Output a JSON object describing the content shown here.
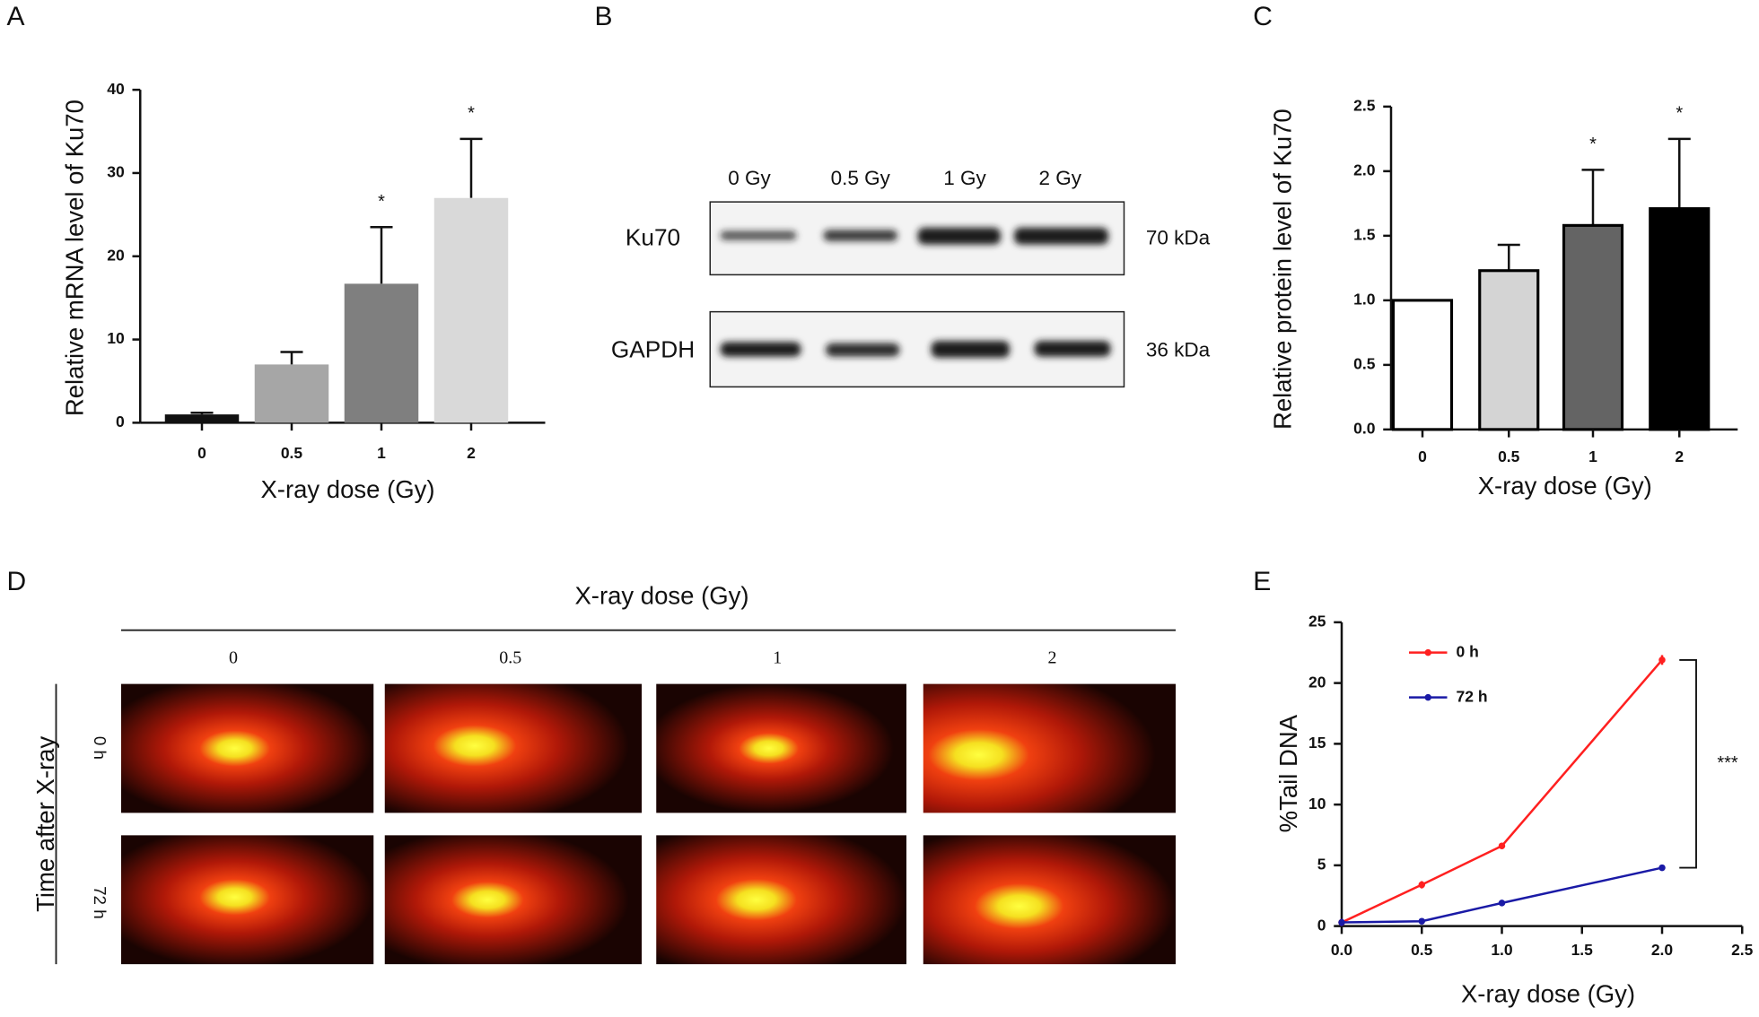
{
  "panel_labels": [
    "A",
    "B",
    "C",
    "D",
    "E"
  ],
  "chart_data": [
    {
      "type": "bar",
      "xlabel": "X-ray dose (Gy)",
      "ylabel": "Relative mRNA level of Ku70",
      "categories": [
        "0",
        "0.5",
        "1",
        "2"
      ],
      "values": [
        1,
        7,
        16.7,
        27
      ],
      "errors": [
        0.2,
        1.5,
        6.8,
        7.1
      ],
      "colors": [
        "#111111",
        "#a6a6a6",
        "#7f7f7f",
        "#d9d9d9"
      ],
      "significance": [
        null,
        null,
        "*",
        "*"
      ],
      "ylim": [
        0,
        40
      ],
      "yticks": [
        0,
        10,
        20,
        30,
        40
      ]
    },
    {
      "type": "bar",
      "xlabel": "X-ray dose (Gy)",
      "ylabel": "Relative protein level of Ku70",
      "categories": [
        "0",
        "0.5",
        "1",
        "2"
      ],
      "values": [
        1.0,
        1.23,
        1.58,
        1.71
      ],
      "errors": [
        0,
        0.2,
        0.43,
        0.54
      ],
      "colors": [
        "#ffffff",
        "#d4d4d4",
        "#646464",
        "#000000"
      ],
      "edgecolor": "#000000",
      "significance": [
        null,
        null,
        "*",
        "*"
      ],
      "ylim": [
        0,
        2.5
      ],
      "yticks": [
        {
          "value": 0,
          "label": "0.0"
        },
        {
          "value": 0.5,
          "label": "0.5"
        },
        {
          "value": 1,
          "label": "1.0"
        },
        {
          "value": 1.5,
          "label": "1.5"
        },
        {
          "value": 2,
          "label": "2.0"
        },
        {
          "value": 2.5,
          "label": "2.5"
        }
      ]
    },
    {
      "type": "line",
      "xlabel": "X-ray dose (Gy)",
      "ylabel": "%Tail DNA",
      "x": [
        0,
        0.5,
        1,
        2
      ],
      "series": [
        {
          "name": "0 h",
          "color": "#ff2020",
          "values": [
            0.3,
            3.4,
            6.6,
            21.9
          ],
          "errors": [
            0.3,
            0.3,
            0.1,
            0.4
          ]
        },
        {
          "name": "72 h",
          "color": "#1a1aa6",
          "values": [
            0.3,
            0.4,
            1.9,
            4.8
          ],
          "errors": [
            0.3,
            0.2,
            0.2,
            0.1
          ]
        }
      ],
      "annotation": "***",
      "xlim": [
        0,
        2.5
      ],
      "xticks": [
        {
          "value": 0,
          "label": "0.0"
        },
        {
          "value": 0.5,
          "label": "0.5"
        },
        {
          "value": 1,
          "label": "1.0"
        },
        {
          "value": 1.5,
          "label": "1.5"
        },
        {
          "value": 2,
          "label": "2.0"
        },
        {
          "value": 2.5,
          "label": "2.5"
        }
      ],
      "ylim": [
        0,
        25
      ],
      "yticks": [
        0,
        5,
        10,
        15,
        20,
        25
      ],
      "legend": "upper left"
    }
  ],
  "blot": {
    "lanes": [
      "0 Gy",
      "0.5 Gy",
      "1 Gy",
      "2 Gy"
    ],
    "rows": [
      {
        "name": "Ku70",
        "size": "70 kDa"
      },
      {
        "name": "GAPDH",
        "size": "36 kDa"
      }
    ]
  },
  "comet": {
    "title": "X-ray dose (Gy)",
    "columns": [
      "0",
      "0.5",
      "1",
      "2"
    ],
    "rows": [
      "0 h",
      "72 h"
    ],
    "ylabel": "Time after X-ray"
  }
}
